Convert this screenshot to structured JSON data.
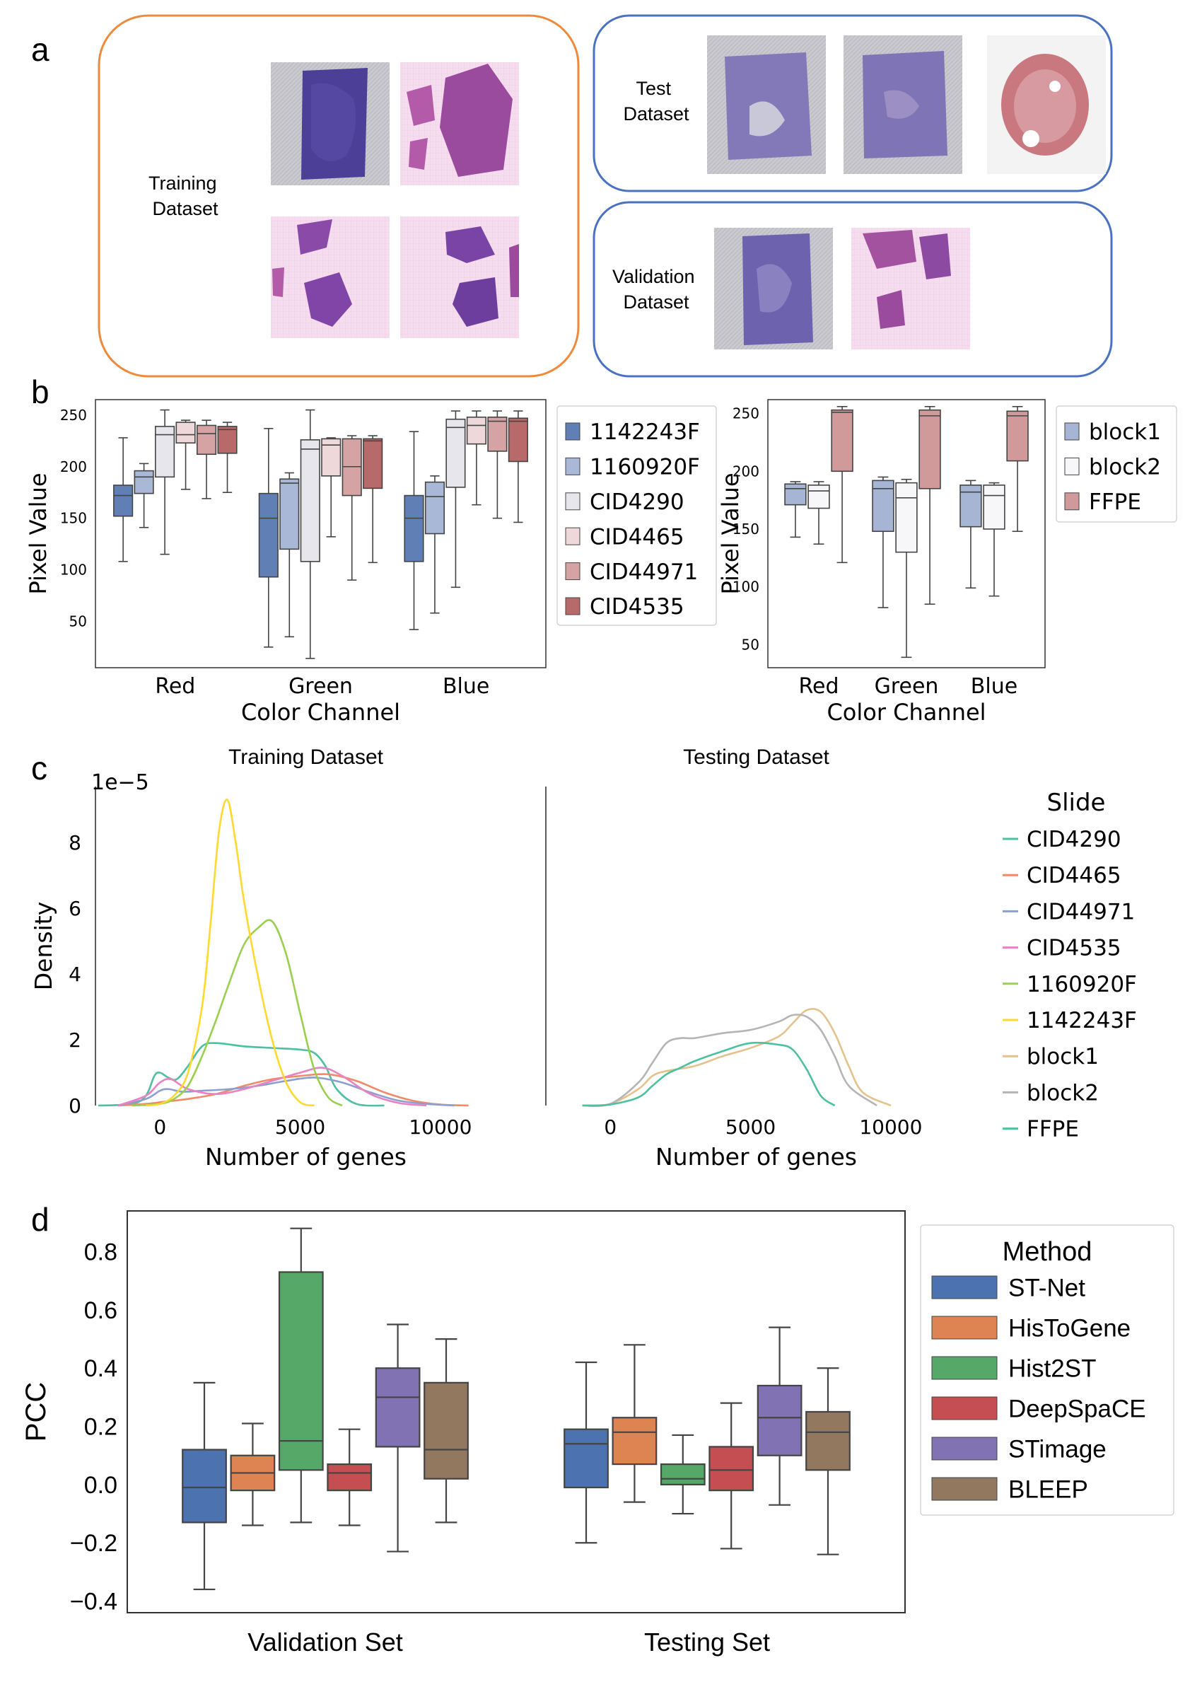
{
  "panel_labels": {
    "a": "a",
    "b": "b",
    "c": "c",
    "d": "d"
  },
  "panel_a": {
    "training_label": [
      "Training",
      "Dataset"
    ],
    "test_label": [
      "Test",
      "Dataset"
    ],
    "validation_label": [
      "Validation",
      "Dataset"
    ],
    "colors": {
      "training_border": "#ee8a3c",
      "test_border": "#4a72c0",
      "validation_border": "#4a72c0"
    }
  },
  "chart_data": [
    {
      "id": "b-left",
      "type": "box",
      "ylabel": "Pixel Value",
      "xlabel": "Color Channel",
      "categories": [
        "Red",
        "Green",
        "Blue"
      ],
      "yticks": [
        "50",
        "100",
        "150",
        "200",
        "250"
      ],
      "ylim": [
        5,
        265
      ],
      "series": [
        {
          "name": "1142243F",
          "color": "#5f7fb5",
          "boxes": [
            [
              108,
              152,
              172,
              182,
              228
            ],
            [
              25,
              93,
              150,
              174,
              237
            ],
            [
              42,
              108,
              150,
              172,
              234
            ]
          ]
        },
        {
          "name": "1160920F",
          "color": "#a9b8d6",
          "boxes": [
            [
              141,
              174,
              190,
              196,
              203
            ],
            [
              35,
              120,
              184,
              188,
              194
            ],
            [
              58,
              135,
              171,
              185,
              191
            ]
          ]
        },
        {
          "name": "CID4290",
          "color": "#e6e6ec",
          "boxes": [
            [
              115,
              190,
              231,
              239,
              255
            ],
            [
              14,
              108,
              217,
              226,
              255
            ],
            [
              83,
              180,
              238,
              246,
              254
            ]
          ]
        },
        {
          "name": "CID4465",
          "color": "#eed8da",
          "boxes": [
            [
              178,
              223,
              231,
              243,
              245
            ],
            [
              132,
              191,
              221,
              227,
              228
            ],
            [
              163,
              222,
              240,
              248,
              254
            ]
          ]
        },
        {
          "name": "CID44971",
          "color": "#d6a3a5",
          "boxes": [
            [
              169,
              212,
              232,
              240,
              245
            ],
            [
              90,
              172,
              200,
              227,
              230
            ],
            [
              150,
              215,
              244,
              248,
              254
            ]
          ]
        },
        {
          "name": "CID4535",
          "color": "#b86a6a",
          "boxes": [
            [
              175,
              213,
              236,
              239,
              243
            ],
            [
              107,
              179,
              225,
              227,
              230
            ],
            [
              146,
              205,
              244,
              247,
              254
            ]
          ]
        }
      ]
    },
    {
      "id": "b-right",
      "type": "box",
      "ylabel": "Pixel Value",
      "xlabel": "Color Channel",
      "categories": [
        "Red",
        "Green",
        "Blue"
      ],
      "yticks": [
        "50",
        "100",
        "150",
        "200",
        "250"
      ],
      "ylim": [
        30,
        262
      ],
      "series": [
        {
          "name": "block1",
          "color": "#a5b5d3",
          "boxes": [
            [
              143,
              171,
              185,
              189,
              191
            ],
            [
              82,
              148,
              185,
              192,
              195
            ],
            [
              99,
              152,
              182,
              188,
              192
            ]
          ]
        },
        {
          "name": "block2",
          "color": "#f7f7fa",
          "boxes": [
            [
              137,
              168,
              183,
              188,
              191
            ],
            [
              39,
              130,
              177,
              190,
              193
            ],
            [
              92,
              150,
              179,
              188,
              190
            ]
          ]
        },
        {
          "name": "FFPE",
          "color": "#d09a9a",
          "boxes": [
            [
              121,
              200,
              251,
              253,
              256
            ],
            [
              85,
              185,
              248,
              253,
              256
            ],
            [
              148,
              209,
              248,
              252,
              256
            ]
          ]
        }
      ]
    },
    {
      "id": "c",
      "type": "line",
      "titles": [
        "Training Dataset",
        "Testing Dataset"
      ],
      "ylabel": "Density",
      "xlabel": "Number of genes",
      "scale_label": "1e−5",
      "xticks": [
        0,
        5000,
        10000
      ],
      "yticks": [
        0,
        2,
        4,
        6,
        8
      ],
      "xlim": [
        -2300,
        12700
      ],
      "ylim": [
        0,
        9.7
      ],
      "legend_title": "Slide",
      "legend": [
        {
          "name": "CID4290",
          "color": "#4cc0a0"
        },
        {
          "name": "CID4465",
          "color": "#f08a68"
        },
        {
          "name": "CID44971",
          "color": "#8c9fd0"
        },
        {
          "name": "CID4535",
          "color": "#e882c0"
        },
        {
          "name": "1160920F",
          "color": "#9ad050"
        },
        {
          "name": "1142243F",
          "color": "#ffd92f"
        },
        {
          "name": "block1",
          "color": "#e5c28c"
        },
        {
          "name": "block2",
          "color": "#b5b5b5"
        },
        {
          "name": "FFPE",
          "color": "#4cc0a0"
        }
      ],
      "train_series": [
        {
          "name": "CID4290",
          "color": "#4cc0a0",
          "x": [
            -2200,
            -1000,
            -500,
            -200,
            0,
            300,
            600,
            1000,
            1500,
            2000,
            3000,
            4000,
            5000,
            5500,
            5900,
            6300,
            7000,
            8000
          ],
          "y": [
            0,
            0.05,
            0.3,
            0.9,
            1.0,
            0.85,
            0.8,
            1.2,
            1.8,
            1.9,
            1.8,
            1.75,
            1.7,
            1.6,
            1.2,
            0.5,
            0.05,
            0
          ]
        },
        {
          "name": "CID4465",
          "color": "#f08a68",
          "x": [
            -1500,
            -500,
            0,
            500,
            1000,
            2000,
            3000,
            4000,
            5000,
            6000,
            7000,
            8000,
            9000,
            10000,
            11000
          ],
          "y": [
            0,
            0.05,
            0.1,
            0.15,
            0.2,
            0.35,
            0.6,
            0.8,
            0.9,
            0.95,
            0.75,
            0.4,
            0.15,
            0.03,
            0
          ]
        },
        {
          "name": "CID44971",
          "color": "#8c9fd0",
          "x": [
            -1500,
            -500,
            0,
            300,
            800,
            1500,
            2500,
            3500,
            4500,
            5500,
            6500,
            7500,
            8500,
            9500,
            10500
          ],
          "y": [
            0,
            0.2,
            0.45,
            0.5,
            0.42,
            0.45,
            0.5,
            0.6,
            0.75,
            0.85,
            0.7,
            0.4,
            0.15,
            0.05,
            0
          ]
        },
        {
          "name": "CID4535",
          "color": "#e882c0",
          "x": [
            -1500,
            -500,
            0,
            400,
            1000,
            2000,
            3000,
            4000,
            5000,
            5800,
            6500,
            7500,
            8500,
            9500
          ],
          "y": [
            0,
            0.3,
            0.7,
            0.8,
            0.5,
            0.35,
            0.5,
            0.75,
            1.0,
            1.15,
            0.9,
            0.35,
            0.08,
            0
          ]
        },
        {
          "name": "1160920F",
          "color": "#9ad050",
          "x": [
            -1000,
            0,
            500,
            1000,
            1500,
            2000,
            2500,
            3000,
            3500,
            4000,
            4500,
            5000,
            5500,
            6000,
            6500
          ],
          "y": [
            0,
            0.05,
            0.2,
            0.6,
            1.5,
            2.6,
            3.8,
            4.9,
            5.4,
            5.6,
            4.6,
            2.8,
            1.1,
            0.25,
            0
          ]
        },
        {
          "name": "1142243F",
          "color": "#ffd92f",
          "x": [
            -500,
            0,
            500,
            1000,
            1500,
            1800,
            2100,
            2400,
            2700,
            3000,
            3500,
            4000,
            4500,
            5000,
            5500
          ],
          "y": [
            0,
            0.05,
            0.3,
            1.0,
            3.0,
            5.5,
            8.3,
            9.3,
            8.0,
            6.2,
            3.9,
            2.0,
            0.7,
            0.1,
            0
          ]
        }
      ],
      "test_series": [
        {
          "name": "block1",
          "color": "#e5c28c",
          "x": [
            -1000,
            0,
            1000,
            1500,
            2000,
            3000,
            4000,
            5000,
            6000,
            6500,
            7000,
            7500,
            8000,
            8500,
            9000,
            10000
          ],
          "y": [
            0,
            0.05,
            0.5,
            0.9,
            1.05,
            1.2,
            1.5,
            1.75,
            2.1,
            2.5,
            2.9,
            2.85,
            2.2,
            1.2,
            0.4,
            0
          ]
        },
        {
          "name": "block2",
          "color": "#b5b5b5",
          "x": [
            -1000,
            0,
            1000,
            1500,
            2000,
            2500,
            3000,
            4000,
            5000,
            6000,
            6500,
            7000,
            7500,
            8000,
            8500,
            9500
          ],
          "y": [
            0,
            0.05,
            0.7,
            1.3,
            1.9,
            2.05,
            2.05,
            2.2,
            2.3,
            2.55,
            2.75,
            2.7,
            2.3,
            1.5,
            0.6,
            0
          ]
        },
        {
          "name": "FFPE",
          "color": "#4cc0a0",
          "x": [
            -1000,
            0,
            1000,
            1500,
            2000,
            2500,
            3000,
            4000,
            5000,
            6000,
            6500,
            7000,
            7500,
            8000
          ],
          "y": [
            0,
            0.03,
            0.25,
            0.6,
            0.95,
            1.15,
            1.35,
            1.65,
            1.9,
            1.85,
            1.7,
            1.1,
            0.3,
            0
          ]
        }
      ]
    },
    {
      "id": "d",
      "type": "box",
      "ylabel": "PCC",
      "categories": [
        "Validation Set",
        "Testing Set"
      ],
      "yticks": [
        "−0.4",
        "−0.2",
        "0.0",
        "0.2",
        "0.4",
        "0.6",
        "0.8"
      ],
      "ytick_values": [
        -0.4,
        -0.2,
        0.0,
        0.2,
        0.4,
        0.6,
        0.8
      ],
      "ylim": [
        -0.44,
        0.94
      ],
      "legend_title": "Method",
      "series": [
        {
          "name": "ST-Net",
          "color": "#4c72b0",
          "boxes": [
            [
              -0.36,
              -0.13,
              -0.01,
              0.12,
              0.35
            ],
            [
              -0.2,
              -0.01,
              0.14,
              0.19,
              0.42
            ]
          ]
        },
        {
          "name": "HisToGene",
          "color": "#dd8452",
          "boxes": [
            [
              -0.14,
              -0.02,
              0.04,
              0.1,
              0.21
            ],
            [
              -0.06,
              0.07,
              0.18,
              0.23,
              0.48
            ]
          ]
        },
        {
          "name": "Hist2ST",
          "color": "#55a868",
          "boxes": [
            [
              -0.13,
              0.05,
              0.15,
              0.73,
              0.88
            ],
            [
              -0.1,
              0.0,
              0.02,
              0.07,
              0.17
            ]
          ]
        },
        {
          "name": "DeepSpaCE",
          "color": "#c44e52",
          "boxes": [
            [
              -0.14,
              -0.02,
              0.04,
              0.07,
              0.19
            ],
            [
              -0.22,
              -0.02,
              0.05,
              0.13,
              0.28
            ]
          ]
        },
        {
          "name": "STimage",
          "color": "#8172b3",
          "boxes": [
            [
              -0.23,
              0.13,
              0.3,
              0.4,
              0.55
            ],
            [
              -0.07,
              0.1,
              0.23,
              0.34,
              0.54
            ]
          ]
        },
        {
          "name": "BLEEP",
          "color": "#937860",
          "boxes": [
            [
              -0.13,
              0.02,
              0.12,
              0.35,
              0.5
            ],
            [
              -0.24,
              0.05,
              0.18,
              0.25,
              0.4
            ]
          ]
        }
      ]
    }
  ]
}
